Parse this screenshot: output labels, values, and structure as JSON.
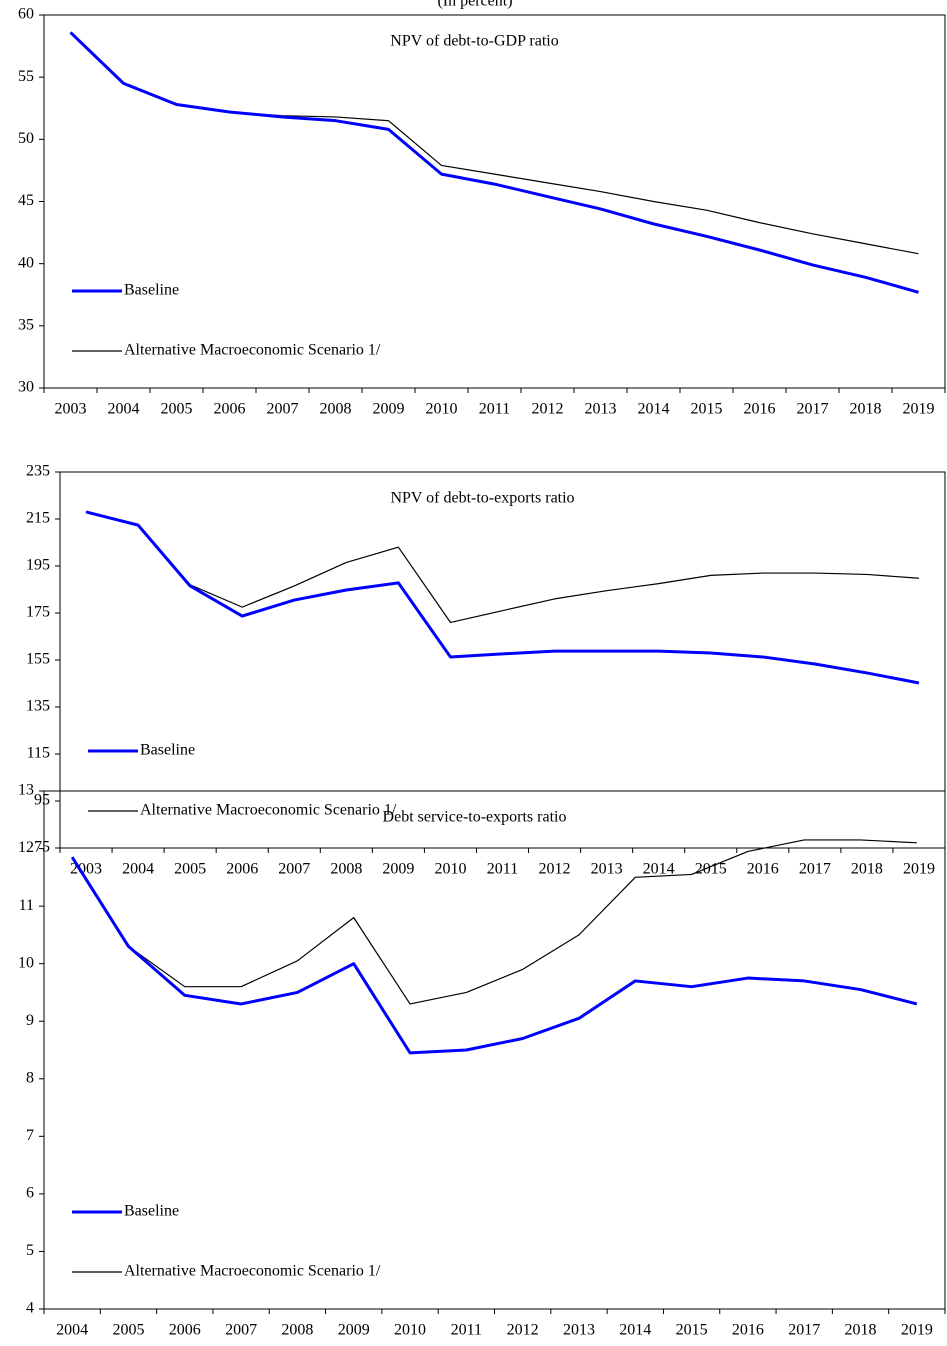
{
  "header": {
    "subtitle": "(In percent)"
  },
  "chart_data": [
    {
      "type": "line",
      "title": "NPV of debt-to-GDP ratio",
      "categories": [
        "2003",
        "2004",
        "2005",
        "2006",
        "2007",
        "2008",
        "2009",
        "2010",
        "2011",
        "2012",
        "2013",
        "2014",
        "2015",
        "2016",
        "2017",
        "2018",
        "2019"
      ],
      "series": [
        {
          "name": "Baseline",
          "color": "#0000ff",
          "values": [
            58.6,
            54.5,
            52.8,
            52.2,
            51.8,
            51.5,
            50.8,
            47.2,
            46.4,
            45.4,
            44.4,
            43.2,
            42.2,
            41.1,
            39.9,
            38.9,
            37.7
          ]
        },
        {
          "name": "Alternative Macroeconomic Scenario 1/",
          "color": "#000000",
          "values": [
            58.6,
            54.5,
            52.8,
            52.2,
            51.9,
            51.8,
            51.5,
            47.9,
            47.2,
            46.5,
            45.8,
            45.0,
            44.3,
            43.3,
            42.4,
            41.6,
            40.8
          ]
        }
      ],
      "ylim": [
        30,
        60
      ],
      "yticks": [
        30,
        35,
        40,
        45,
        50,
        55,
        60
      ]
    },
    {
      "type": "line",
      "title": "NPV of debt-to-exports ratio",
      "categories": [
        "2003",
        "2004",
        "2005",
        "2006",
        "2007",
        "2008",
        "2009",
        "2010",
        "2011",
        "2012",
        "2013",
        "2014",
        "2015",
        "2016",
        "2017",
        "2018",
        "2019"
      ],
      "series": [
        {
          "name": "Baseline",
          "color": "#0000ff",
          "values": [
            218,
            212.4,
            186.5,
            173.7,
            180.5,
            184.8,
            187.8,
            156.3,
            157.6,
            158.8,
            158.8,
            158.8,
            158,
            156.3,
            153.3,
            149.5,
            145.2
          ]
        },
        {
          "name": "Alternative Macroeconomic Scenario 1/",
          "color": "#000000",
          "values": [
            218,
            212.4,
            187,
            177.5,
            186.5,
            196.5,
            203,
            171,
            176,
            181,
            184.5,
            187.5,
            191,
            192,
            192,
            191.4,
            189.8
          ]
        }
      ],
      "ylim": [
        75,
        235
      ],
      "yticks": [
        75,
        95,
        115,
        135,
        155,
        175,
        195,
        215,
        235
      ]
    },
    {
      "type": "line",
      "title": "Debt service-to-exports ratio",
      "categories": [
        "2004",
        "2005",
        "2006",
        "2007",
        "2008",
        "2009",
        "2010",
        "2011",
        "2012",
        "2013",
        "2014",
        "2015",
        "2016",
        "2017",
        "2018",
        "2019"
      ],
      "series": [
        {
          "name": "Baseline",
          "color": "#0000ff",
          "values": [
            11.85,
            10.3,
            9.45,
            9.3,
            9.5,
            10.0,
            8.45,
            8.5,
            8.7,
            9.05,
            9.7,
            9.6,
            9.75,
            9.7,
            9.55,
            9.3
          ]
        },
        {
          "name": "Alternative Macroeconomic Scenario 1/",
          "color": "#000000",
          "values": [
            11.85,
            10.3,
            9.6,
            9.6,
            10.05,
            10.8,
            9.3,
            9.5,
            9.9,
            10.5,
            11.5,
            11.55,
            11.95,
            12.15,
            12.15,
            12.1
          ]
        }
      ],
      "ylim": [
        4,
        13
      ],
      "yticks": [
        4,
        5,
        6,
        7,
        8,
        9,
        10,
        11,
        12,
        13
      ]
    }
  ]
}
